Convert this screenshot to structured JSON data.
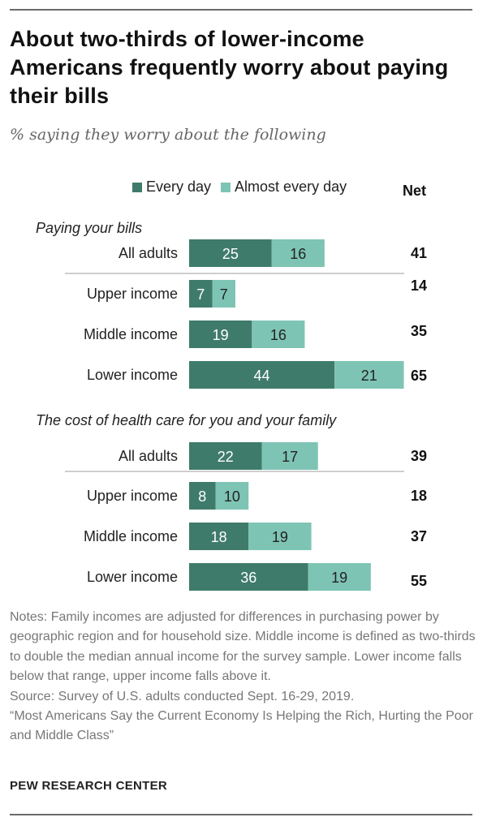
{
  "title": "About two-thirds of lower-income Americans frequently worry about paying their bills",
  "subtitle": "% saying they worry about the following",
  "legend": {
    "every_day": "Every day",
    "almost_every_day": "Almost every day",
    "net": "Net"
  },
  "colors": {
    "every_day": "#3f7b6b",
    "almost_every_day": "#7ec4b4",
    "divider": "#bdbdbd"
  },
  "chart_data": {
    "type": "bar",
    "orientation": "horizontal",
    "stacked": true,
    "series": [
      {
        "name": "Every day"
      },
      {
        "name": "Almost every day"
      }
    ],
    "groups": [
      {
        "label": "Paying your bills",
        "rows": [
          {
            "category": "All adults",
            "every_day": 25,
            "almost_every_day": 16,
            "net": 41
          },
          {
            "category": "Upper income",
            "every_day": 7,
            "almost_every_day": 7,
            "net": 14
          },
          {
            "category": "Middle income",
            "every_day": 19,
            "almost_every_day": 16,
            "net": 35
          },
          {
            "category": "Lower income",
            "every_day": 44,
            "almost_every_day": 21,
            "net": 65
          }
        ]
      },
      {
        "label": "The cost of health care for you and your family",
        "rows": [
          {
            "category": "All adults",
            "every_day": 22,
            "almost_every_day": 17,
            "net": 39
          },
          {
            "category": "Upper income",
            "every_day": 8,
            "almost_every_day": 10,
            "net": 18
          },
          {
            "category": "Middle income",
            "every_day": 18,
            "almost_every_day": 19,
            "net": 37
          },
          {
            "category": "Lower income",
            "every_day": 36,
            "almost_every_day": 19,
            "net": 55
          }
        ]
      }
    ]
  },
  "notes": [
    "Notes: Family incomes are adjusted for differences in purchasing power by geographic region and for household size. Middle income is defined as two-thirds to double the median annual income for the survey sample. Lower income falls below that range, upper income falls above it.",
    "Source: Survey of U.S. adults conducted Sept. 16-29, 2019.",
    "“Most Americans Say the Current Economy Is Helping the Rich, Hurting the Poor and Middle Class”"
  ],
  "footer": "PEW RESEARCH CENTER"
}
